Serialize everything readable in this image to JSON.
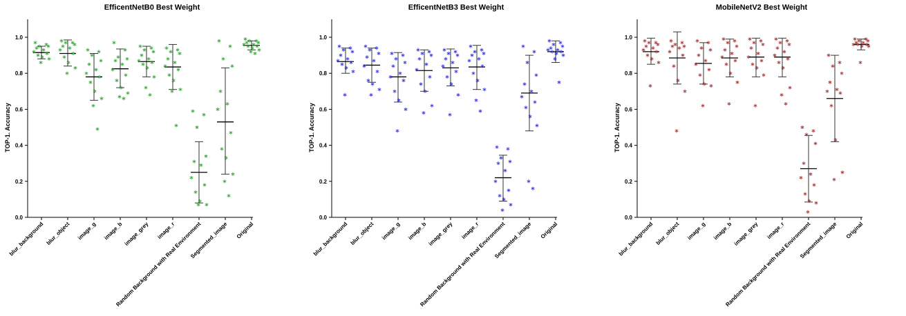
{
  "chart_data": [
    {
      "type": "scatter",
      "title": "EfficentNetB0 Best Weight",
      "ylabel": "TOP-1. Accuracy",
      "ylim": [
        0,
        1.0
      ],
      "yticks": [
        "0.0",
        "0.2",
        "0.4",
        "0.6",
        "0.8",
        "1.0"
      ],
      "categories": [
        "blur_background",
        "blur_object",
        "image_g",
        "image_b",
        "image_grey",
        "image_r",
        "Random Background with Real Environment",
        "Segmented_image",
        "Original"
      ],
      "color": "#3aa83a",
      "series": [
        {
          "mean": 0.915,
          "sd_low": 0.88,
          "sd_high": 0.95,
          "points": [
            0.97,
            0.96,
            0.95,
            0.95,
            0.94,
            0.93,
            0.92,
            0.91,
            0.9,
            0.89,
            0.88,
            0.86
          ]
        },
        {
          "mean": 0.91,
          "sd_low": 0.84,
          "sd_high": 0.985,
          "points": [
            0.98,
            0.97,
            0.97,
            0.96,
            0.95,
            0.94,
            0.93,
            0.91,
            0.89,
            0.86,
            0.83,
            0.8
          ]
        },
        {
          "mean": 0.78,
          "sd_low": 0.65,
          "sd_high": 0.91,
          "points": [
            0.93,
            0.92,
            0.9,
            0.87,
            0.85,
            0.82,
            0.8,
            0.78,
            0.75,
            0.7,
            0.66,
            0.62,
            0.49
          ]
        },
        {
          "mean": 0.825,
          "sd_low": 0.72,
          "sd_high": 0.935,
          "points": [
            0.97,
            0.93,
            0.89,
            0.88,
            0.87,
            0.85,
            0.82,
            0.79,
            0.76,
            0.72,
            0.69,
            0.67,
            0.66
          ]
        },
        {
          "mean": 0.865,
          "sd_low": 0.78,
          "sd_high": 0.95,
          "points": [
            0.95,
            0.94,
            0.93,
            0.92,
            0.9,
            0.88,
            0.87,
            0.86,
            0.85,
            0.83,
            0.78,
            0.72,
            0.68
          ]
        },
        {
          "mean": 0.835,
          "sd_low": 0.71,
          "sd_high": 0.96,
          "points": [
            0.94,
            0.93,
            0.92,
            0.91,
            0.88,
            0.86,
            0.84,
            0.82,
            0.79,
            0.76,
            0.71,
            0.7,
            0.51
          ]
        },
        {
          "mean": 0.25,
          "sd_low": 0.08,
          "sd_high": 0.42,
          "points": [
            0.59,
            0.57,
            0.5,
            0.34,
            0.31,
            0.29,
            0.22,
            0.18,
            0.14,
            0.09,
            0.07,
            0.07
          ]
        },
        {
          "mean": 0.53,
          "sd_low": 0.24,
          "sd_high": 0.83,
          "points": [
            0.98,
            0.95,
            0.88,
            0.84,
            0.7,
            0.63,
            0.6,
            0.47,
            0.38,
            0.33,
            0.24,
            0.2,
            0.12
          ]
        },
        {
          "mean": 0.955,
          "sd_low": 0.93,
          "sd_high": 0.98,
          "points": [
            0.99,
            0.98,
            0.98,
            0.97,
            0.97,
            0.96,
            0.96,
            0.95,
            0.95,
            0.94,
            0.93,
            0.92,
            0.91
          ]
        }
      ]
    },
    {
      "type": "scatter",
      "title": "EfficentNetB3 Best Weight",
      "ylabel": "TOP-1. Accuracy",
      "ylim": [
        0,
        1.0
      ],
      "yticks": [
        "0.0",
        "0.2",
        "0.4",
        "0.6",
        "0.8",
        "1.0"
      ],
      "categories": [
        "blur_background",
        "blur_object",
        "image_g",
        "image_b",
        "image_grey",
        "image_r",
        "Random Background with Real Environment",
        "Segmented_image",
        "Original"
      ],
      "color": "#3b3bdd",
      "series": [
        {
          "mean": 0.865,
          "sd_low": 0.8,
          "sd_high": 0.94,
          "points": [
            0.95,
            0.94,
            0.93,
            0.92,
            0.9,
            0.88,
            0.87,
            0.86,
            0.85,
            0.83,
            0.81,
            0.68
          ]
        },
        {
          "mean": 0.845,
          "sd_low": 0.75,
          "sd_high": 0.94,
          "points": [
            0.95,
            0.94,
            0.93,
            0.91,
            0.89,
            0.87,
            0.84,
            0.81,
            0.76,
            0.74,
            0.71,
            0.68
          ]
        },
        {
          "mean": 0.78,
          "sd_low": 0.64,
          "sd_high": 0.915,
          "points": [
            0.91,
            0.9,
            0.88,
            0.86,
            0.84,
            0.8,
            0.78,
            0.76,
            0.7,
            0.65,
            0.6,
            0.48
          ]
        },
        {
          "mean": 0.815,
          "sd_low": 0.7,
          "sd_high": 0.93,
          "points": [
            0.93,
            0.92,
            0.91,
            0.9,
            0.88,
            0.85,
            0.82,
            0.78,
            0.74,
            0.7,
            0.62,
            0.58
          ]
        },
        {
          "mean": 0.83,
          "sd_low": 0.73,
          "sd_high": 0.935,
          "points": [
            0.93,
            0.92,
            0.91,
            0.9,
            0.88,
            0.86,
            0.84,
            0.81,
            0.78,
            0.74,
            0.68,
            0.57
          ]
        },
        {
          "mean": 0.835,
          "sd_low": 0.71,
          "sd_high": 0.955,
          "points": [
            0.95,
            0.93,
            0.92,
            0.91,
            0.9,
            0.88,
            0.87,
            0.84,
            0.8,
            0.76,
            0.71,
            0.65,
            0.59
          ]
        },
        {
          "mean": 0.22,
          "sd_low": 0.09,
          "sd_high": 0.345,
          "points": [
            0.39,
            0.38,
            0.33,
            0.31,
            0.3,
            0.26,
            0.2,
            0.15,
            0.12,
            0.1,
            0.07,
            0.04
          ]
        },
        {
          "mean": 0.69,
          "sd_low": 0.48,
          "sd_high": 0.9,
          "points": [
            0.95,
            0.92,
            0.86,
            0.79,
            0.74,
            0.7,
            0.67,
            0.64,
            0.61,
            0.56,
            0.51,
            0.2,
            0.16
          ]
        },
        {
          "mean": 0.92,
          "sd_low": 0.86,
          "sd_high": 0.98,
          "points": [
            0.98,
            0.97,
            0.96,
            0.95,
            0.94,
            0.93,
            0.93,
            0.92,
            0.92,
            0.91,
            0.9,
            0.88,
            0.75
          ]
        }
      ]
    },
    {
      "type": "scatter",
      "title": "MobileNetV2 Best Weight",
      "ylabel": "TOP-1. Accuracy",
      "ylim": [
        0,
        1.0
      ],
      "yticks": [
        "0.0",
        "0.2",
        "0.4",
        "0.6",
        "0.8",
        "1.0"
      ],
      "categories": [
        "blur_background",
        "blur_object",
        "image_g",
        "image_b",
        "image_grey",
        "image_r",
        "Random Background with Real Environment",
        "Segmented_image",
        "Original"
      ],
      "color": "#a83a3a",
      "series": [
        {
          "mean": 0.92,
          "sd_low": 0.85,
          "sd_high": 0.995,
          "points": [
            0.98,
            0.97,
            0.97,
            0.96,
            0.95,
            0.94,
            0.93,
            0.92,
            0.9,
            0.88,
            0.86,
            0.73
          ]
        },
        {
          "mean": 0.885,
          "sd_low": 0.74,
          "sd_high": 1.03,
          "points": [
            0.98,
            0.97,
            0.96,
            0.95,
            0.95,
            0.94,
            0.92,
            0.9,
            0.84,
            0.76,
            0.7,
            0.48
          ]
        },
        {
          "mean": 0.855,
          "sd_low": 0.74,
          "sd_high": 0.97,
          "points": [
            0.98,
            0.97,
            0.94,
            0.93,
            0.9,
            0.87,
            0.85,
            0.82,
            0.79,
            0.74,
            0.73,
            0.62
          ]
        },
        {
          "mean": 0.885,
          "sd_low": 0.78,
          "sd_high": 0.99,
          "points": [
            0.99,
            0.98,
            0.97,
            0.95,
            0.93,
            0.91,
            0.89,
            0.87,
            0.85,
            0.8,
            0.75,
            0.63
          ]
        },
        {
          "mean": 0.89,
          "sd_low": 0.78,
          "sd_high": 0.995,
          "points": [
            0.99,
            0.98,
            0.97,
            0.96,
            0.94,
            0.91,
            0.89,
            0.87,
            0.85,
            0.83,
            0.79,
            0.62
          ]
        },
        {
          "mean": 0.89,
          "sd_low": 0.78,
          "sd_high": 0.995,
          "points": [
            0.99,
            0.98,
            0.97,
            0.96,
            0.94,
            0.92,
            0.9,
            0.88,
            0.86,
            0.83,
            0.72,
            0.68,
            0.63
          ]
        },
        {
          "mean": 0.27,
          "sd_low": 0.085,
          "sd_high": 0.455,
          "points": [
            0.5,
            0.48,
            0.46,
            0.41,
            0.3,
            0.24,
            0.22,
            0.18,
            0.13,
            0.09,
            0.08,
            0.03
          ]
        },
        {
          "mean": 0.66,
          "sd_low": 0.42,
          "sd_high": 0.9,
          "points": [
            0.9,
            0.86,
            0.84,
            0.8,
            0.75,
            0.71,
            0.7,
            0.69,
            0.62,
            0.43,
            0.25,
            0.21
          ]
        },
        {
          "mean": 0.96,
          "sd_low": 0.93,
          "sd_high": 0.99,
          "points": [
            0.99,
            0.99,
            0.98,
            0.98,
            0.97,
            0.97,
            0.96,
            0.96,
            0.96,
            0.95,
            0.95,
            0.86
          ]
        }
      ]
    }
  ]
}
